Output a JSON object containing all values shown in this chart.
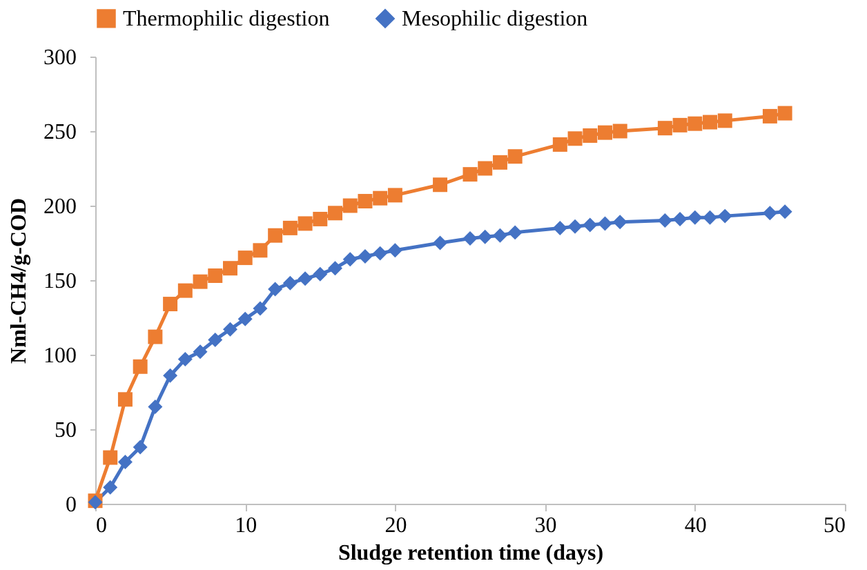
{
  "chart_data": {
    "type": "line",
    "xlabel": "Sludge retention time (days)",
    "ylabel": "Nml-CH4/g-COD",
    "x": [
      0,
      1,
      2,
      3,
      4,
      5,
      6,
      7,
      8,
      9,
      10,
      11,
      12,
      13,
      14,
      15,
      16,
      17,
      18,
      19,
      20,
      23,
      25,
      26,
      27,
      28,
      31,
      32,
      33,
      34,
      35,
      38,
      39,
      40,
      41,
      42,
      45,
      46
    ],
    "series": [
      {
        "name": "Thermophilic digestion",
        "color": "#ed7d31",
        "marker": "square",
        "values": [
          2,
          31,
          70,
          92,
          112,
          134,
          143,
          149,
          153,
          158,
          165,
          170,
          180,
          185,
          188,
          191,
          195,
          200,
          203,
          205,
          207,
          214,
          221,
          225,
          229,
          233,
          241,
          245,
          247,
          249,
          250,
          252,
          254,
          255,
          256,
          257,
          260,
          262
        ]
      },
      {
        "name": "Mesophilic digestion",
        "color": "#4472c4",
        "marker": "diamond",
        "values": [
          1,
          11,
          28,
          38,
          65,
          86,
          97,
          102,
          110,
          117,
          124,
          131,
          144,
          148,
          151,
          154,
          158,
          164,
          166,
          168,
          170,
          175,
          178,
          179,
          180,
          182,
          185,
          186,
          187,
          188,
          189,
          190,
          191,
          192,
          192,
          193,
          195,
          196
        ]
      }
    ],
    "xlim": [
      0,
      50
    ],
    "xticks": [
      0,
      10,
      20,
      30,
      40,
      50
    ],
    "ylim": [
      0,
      300
    ],
    "yticks": [
      0,
      50,
      100,
      150,
      200,
      250,
      300
    ],
    "grid": false,
    "legend": "top",
    "line_style": "solid"
  }
}
